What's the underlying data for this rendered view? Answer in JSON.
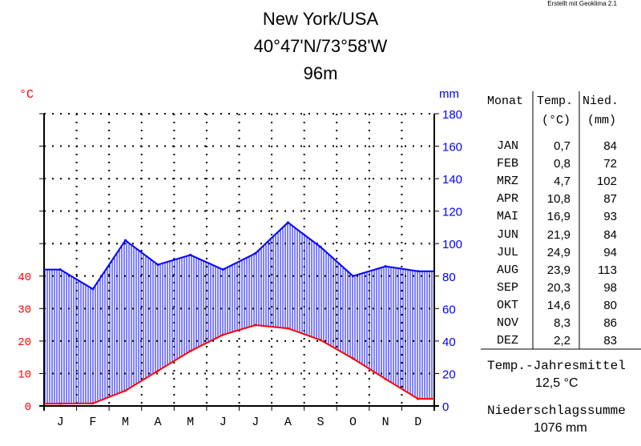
{
  "credit": "Erstellt mit Geoklima 2.1",
  "station": {
    "name": "New York/USA",
    "coords": "40°47'N/73°58'W",
    "elevation": "96m"
  },
  "units": {
    "temp": "°C",
    "precip": "mm"
  },
  "colors": {
    "temp": "#ff0000",
    "precip": "#0000ff",
    "axis": "#000000"
  },
  "chart_data": {
    "type": "climate-diagram",
    "months": [
      "J",
      "F",
      "M",
      "A",
      "M",
      "J",
      "J",
      "A",
      "S",
      "O",
      "N",
      "D"
    ],
    "temp_ticks": [
      0,
      10,
      20,
      30,
      40
    ],
    "precip_ticks": [
      0,
      20,
      40,
      60,
      80,
      100,
      120,
      140,
      160,
      180
    ],
    "temp_range": [
      0,
      90
    ],
    "precip_range": [
      0,
      180
    ],
    "grid": true,
    "series": [
      {
        "name": "Temp.",
        "unit": "°C",
        "values": [
          0.7,
          0.8,
          4.7,
          10.8,
          16.9,
          21.9,
          24.9,
          23.9,
          20.3,
          14.6,
          8.3,
          2.2
        ]
      },
      {
        "name": "Nied.",
        "unit": "mm",
        "values": [
          84,
          72,
          102,
          87,
          93,
          84,
          94,
          113,
          98,
          80,
          86,
          83
        ]
      }
    ]
  },
  "table": {
    "headers": {
      "month": "Monat",
      "temp": "Temp.",
      "temp_unit": "(°C)",
      "precip": "Nied.",
      "precip_unit": "(mm)"
    },
    "rows": [
      {
        "month": "JAN",
        "temp": "0,7",
        "precip": "84"
      },
      {
        "month": "FEB",
        "temp": "0,8",
        "precip": "72"
      },
      {
        "month": "MRZ",
        "temp": "4,7",
        "precip": "102"
      },
      {
        "month": "APR",
        "temp": "10,8",
        "precip": "87"
      },
      {
        "month": "MAI",
        "temp": "16,9",
        "precip": "93"
      },
      {
        "month": "JUN",
        "temp": "21,9",
        "precip": "84"
      },
      {
        "month": "JUL",
        "temp": "24,9",
        "precip": "94"
      },
      {
        "month": "AUG",
        "temp": "23,9",
        "precip": "113"
      },
      {
        "month": "SEP",
        "temp": "20,3",
        "precip": "98"
      },
      {
        "month": "OKT",
        "temp": "14,6",
        "precip": "80"
      },
      {
        "month": "NOV",
        "temp": "8,3",
        "precip": "86"
      },
      {
        "month": "DEZ",
        "temp": "2,2",
        "precip": "83"
      }
    ]
  },
  "summary": {
    "temp_label": "Temp.-Jahresmittel",
    "temp_value": "12,5 °C",
    "precip_label": "Niederschlagssumme",
    "precip_value": "1076 mm"
  }
}
